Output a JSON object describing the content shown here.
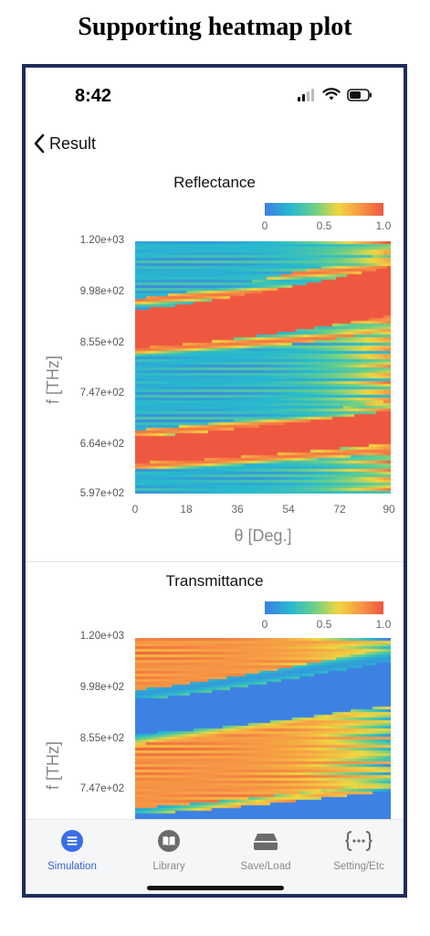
{
  "caption": "Supporting heatmap plot",
  "status": {
    "time": "8:42"
  },
  "nav": {
    "back_label": "Result"
  },
  "colorbar": {
    "ticks": [
      "0",
      "0.5",
      "1.0"
    ],
    "colors": [
      "#3e7fe3",
      "#27b9cf",
      "#6ccf86",
      "#f0d640",
      "#f79a45",
      "#ef5540"
    ]
  },
  "reflectance": {
    "title": "Reflectance",
    "y_ticks": [
      "1.20e+03",
      "9.98e+02",
      "8.55e+02",
      "7.47e+02",
      "6.64e+02",
      "5.97e+02"
    ],
    "x_ticks": [
      "0",
      "18",
      "36",
      "54",
      "72",
      "90"
    ],
    "ylabel": "f [THz]",
    "xlabel": "θ [Deg.]"
  },
  "transmittance": {
    "title": "Transmittance",
    "y_ticks": [
      "1.20e+03",
      "9.98e+02",
      "8.55e+02",
      "7.47e+02"
    ],
    "ylabel": "f [THz]"
  },
  "tabs": [
    {
      "label": "Simulation",
      "icon": "list-icon",
      "active": true
    },
    {
      "label": "Library",
      "icon": "book-icon",
      "active": false
    },
    {
      "label": "Save/Load",
      "icon": "drive-icon",
      "active": false
    },
    {
      "label": "Setting/Etc",
      "icon": "braces-icon",
      "active": false
    }
  ],
  "chart_data": [
    {
      "type": "heatmap",
      "title": "Reflectance",
      "xlabel": "θ [Deg.]",
      "ylabel": "f [THz]",
      "xlim": [
        0,
        90
      ],
      "ylim": [
        597,
        1200
      ],
      "color_range": [
        0,
        1
      ],
      "x_ticks": [
        0,
        18,
        36,
        54,
        72,
        90
      ],
      "y_ticks": [
        597,
        664,
        747,
        855,
        998,
        1200
      ],
      "stopbands": [
        {
          "f_center_at_0deg": 995,
          "f_center_at_90deg": 1085,
          "width": 45
        },
        {
          "f_center_at_0deg": 705,
          "f_center_at_90deg": 760,
          "width": 30
        }
      ]
    },
    {
      "type": "heatmap",
      "title": "Transmittance",
      "ylabel": "f [THz]",
      "xlim": [
        0,
        90
      ],
      "color_range": [
        0,
        1
      ],
      "y_ticks": [
        747,
        855,
        998,
        1200
      ]
    }
  ]
}
